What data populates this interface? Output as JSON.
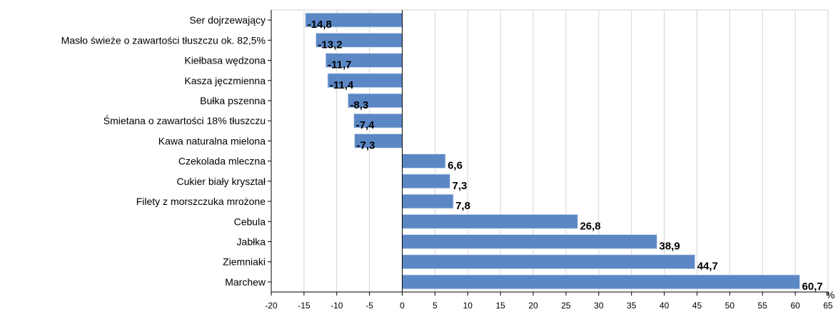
{
  "chart_data": {
    "type": "bar",
    "orientation": "horizontal",
    "categories": [
      "Ser dojrzewający",
      "Masło świeże o zawartości tłuszczu ok. 82,5%",
      "Kiełbasa wędzona",
      "Kasza jęczmienna",
      "Bułka pszenna",
      "Śmietana o zawartości 18% tłuszczu",
      "Kawa naturalna mielona",
      "Czekolada mleczna",
      "Cukier biały kryształ",
      "Filety  z morszczuka mrożone",
      "Cebula",
      "Jabłka",
      "Ziemniaki",
      "Marchew"
    ],
    "values": [
      -14.8,
      -13.2,
      -11.7,
      -11.4,
      -8.3,
      -7.4,
      -7.3,
      6.6,
      7.3,
      7.8,
      26.8,
      38.9,
      44.7,
      60.7
    ],
    "value_labels": [
      "-14,8",
      "-13,2",
      "-11,7",
      "-11,4",
      "-8,3",
      "-7,4",
      "-7,3",
      "6,6",
      "7,3",
      "7,8",
      "26,8",
      "38,9",
      "44,7",
      "60,7"
    ],
    "xlim": [
      -20,
      65
    ],
    "xticks": [
      -20,
      -15,
      -10,
      -5,
      0,
      5,
      10,
      15,
      20,
      25,
      30,
      35,
      40,
      45,
      50,
      55,
      60,
      65
    ],
    "xtick_labels": [
      "-20",
      "-15",
      "-10",
      "-5",
      "0",
      "5",
      "10",
      "15",
      "20",
      "25",
      "30",
      "35",
      "40",
      "45",
      "50",
      "55",
      "60",
      "65"
    ],
    "unit": "%",
    "grid": true,
    "title": "",
    "xlabel": "",
    "ylabel": "",
    "colors": {
      "bar_fill": "#5b87c5",
      "bar_stroke": "#dde6f2",
      "grid": "#d4d4d4",
      "axis": "#000000"
    }
  }
}
